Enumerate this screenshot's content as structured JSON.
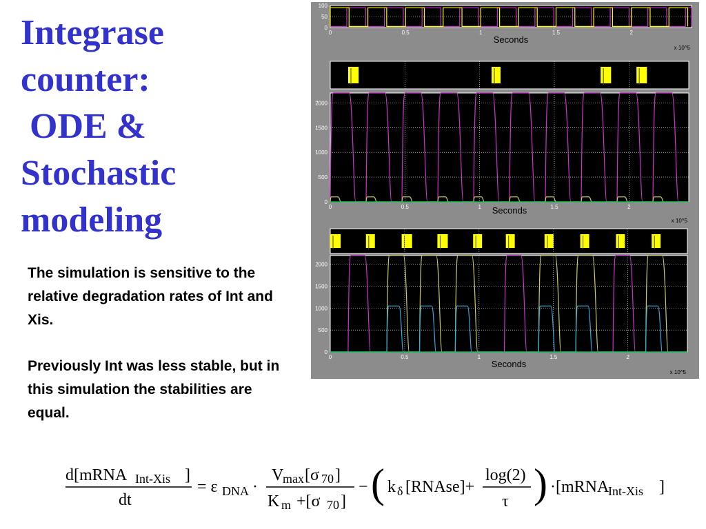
{
  "slide": {
    "title_lines": [
      "Integrase",
      "counter:",
      " ODE &",
      "Stochastic",
      "modeling"
    ],
    "paragraph1": "The simulation is sensitive to the relative degradation rates of Int and Xis.",
    "paragraph2": "Previously Int was less stable, but in this simulation the stabilities are equal.",
    "colors": {
      "title": "#3333cc",
      "figure_bg": "#8c8c8c",
      "plot_bg": "#000000",
      "magenta": "#cc33cc",
      "yellow": "#ffff00",
      "green": "#00cc44",
      "cyan": "#33aadd",
      "olive": "#cccc66"
    }
  },
  "chart_data": [
    {
      "type": "line",
      "panel": "top-square-wave",
      "xlabel": "Seconds",
      "x_exponent": "x 10^5",
      "xlim": [
        0,
        2.4
      ],
      "ylim": [
        0,
        100
      ],
      "x_ticks": [
        "0",
        "0.5",
        "1",
        "1.5",
        "2"
      ],
      "x_tick_values": [
        0,
        0.5,
        1,
        1.5,
        2
      ],
      "y_ticks": [
        "100",
        "50",
        "0"
      ],
      "y_tick_values": [
        100,
        50,
        0
      ],
      "series": [
        {
          "color": "magenta",
          "period": 0.25,
          "phase": 0.11,
          "duty": 0.5
        },
        {
          "color": "yellow",
          "period": 0.25,
          "phase": 0.0,
          "duty": 0.5
        }
      ]
    },
    {
      "type": "bar",
      "panel": "event-bar-1",
      "xlim": [
        0,
        2.4
      ],
      "events": [
        [
          0.12,
          0.19
        ],
        [
          1.08,
          1.14
        ],
        [
          1.81,
          1.88
        ],
        [
          2.05,
          2.12
        ]
      ]
    },
    {
      "type": "line",
      "panel": "ode-curves",
      "xlabel": "Seconds",
      "x_exponent": "x 10^5",
      "xlim": [
        0,
        2.4
      ],
      "ylim": [
        0,
        2200
      ],
      "x_ticks": [
        "0",
        "0.5",
        "1",
        "1.5",
        "2"
      ],
      "x_tick_values": [
        0,
        0.5,
        1,
        1.5,
        2
      ],
      "y_ticks": [
        "2000",
        "1500",
        "1000",
        "500",
        "0"
      ],
      "y_tick_values": [
        2000,
        1500,
        1000,
        500,
        0
      ],
      "series": [
        {
          "color": "magenta",
          "peak": 2200,
          "starts": [
            0.0,
            0.24,
            0.48,
            0.72,
            0.96,
            1.2,
            1.44,
            1.68,
            1.92,
            2.16
          ],
          "width": 0.17
        },
        {
          "color": "olive",
          "peak": 100,
          "starts": [
            0.0,
            0.24,
            0.48,
            0.72,
            0.96,
            1.2,
            1.44,
            1.68,
            1.92,
            2.16
          ],
          "width": 0.07
        },
        {
          "color": "green",
          "level": 0
        }
      ]
    },
    {
      "type": "bar",
      "panel": "event-bar-2",
      "xlim": [
        0,
        2.4
      ],
      "events": [
        [
          0.0,
          0.07
        ],
        [
          0.24,
          0.3
        ],
        [
          0.48,
          0.55
        ],
        [
          0.72,
          0.79
        ],
        [
          0.96,
          1.02
        ],
        [
          1.18,
          1.24
        ],
        [
          1.44,
          1.5
        ],
        [
          1.68,
          1.74
        ],
        [
          1.92,
          1.98
        ],
        [
          2.16,
          2.22
        ]
      ]
    },
    {
      "type": "line",
      "panel": "stochastic-curves",
      "xlabel": "Seconds",
      "x_exponent": "x 10^5",
      "xlim": [
        0,
        2.4
      ],
      "ylim": [
        0,
        2200
      ],
      "x_ticks": [
        "0",
        "0.5",
        "1",
        "1.5",
        "2"
      ],
      "x_tick_values": [
        0,
        0.5,
        1,
        1.5,
        2
      ],
      "y_ticks": [
        "2000",
        "1500",
        "1000",
        "500",
        "0"
      ],
      "y_tick_values": [
        2000,
        1500,
        1000,
        500,
        0
      ],
      "series": [
        {
          "color": "magenta",
          "peak": 2200,
          "starts": [
            0.12,
            1.17,
            1.9
          ],
          "width": 0.15
        },
        {
          "color": "olive",
          "peak": 2200,
          "starts": [
            0.38,
            0.6,
            0.84,
            1.4,
            1.65,
            2.12
          ],
          "width": 0.15
        },
        {
          "color": "cyan",
          "peak": 1050,
          "starts": [
            0.38,
            0.6,
            0.84,
            1.4,
            1.65,
            2.12
          ],
          "width": 0.11
        },
        {
          "color": "green",
          "level": 0
        }
      ]
    }
  ]
}
